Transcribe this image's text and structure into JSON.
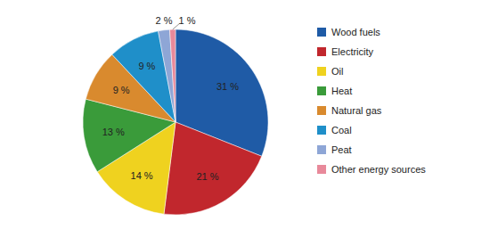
{
  "chart_data": {
    "type": "pie",
    "categories": [
      "Wood fuels",
      "Electricity",
      "Oil",
      "Heat",
      "Natural gas",
      "Coal",
      "Peat",
      "Other energy sources"
    ],
    "values": [
      31,
      21,
      14,
      13,
      9,
      9,
      2,
      1
    ],
    "value_labels": [
      "31 %",
      "21 %",
      "14 %",
      "13 %",
      "9 %",
      "9 %",
      "2 %",
      "1 %"
    ],
    "colors": [
      "#1f5ba6",
      "#c1272d",
      "#efd21f",
      "#3a9b3a",
      "#d98a2e",
      "#1f8fc9",
      "#8ea6d6",
      "#e8899a"
    ],
    "data_labels": true,
    "legend": "right"
  }
}
